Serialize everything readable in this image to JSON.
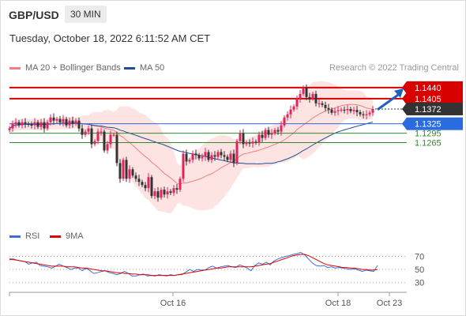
{
  "header": {
    "pair": "GBP/USD",
    "timeframe": "30 MIN",
    "datetime": "Tuesday, October 18, 2022 6:11:52 AM CET"
  },
  "legend": {
    "ma20": {
      "label": "MA 20 + Bollinger Bands",
      "color": "#f08080"
    },
    "ma50": {
      "label": "MA 50",
      "color": "#1f4e96"
    },
    "rsi": {
      "label": "RSI",
      "color": "#3b6fd8"
    },
    "ma9": {
      "label": "9MA",
      "color": "#e00000"
    }
  },
  "credit": "Research © 2022 Trading Central",
  "chart_data": [
    {
      "type": "candlestick",
      "title": "GBP/USD",
      "x_ticks": [
        "Oct 16",
        "Oct 18",
        "Oct 23"
      ],
      "ylim": [
        1.1035,
        1.148
      ],
      "current_price": "1.1372",
      "price_label_color": "#333333",
      "levels": [
        {
          "value": 1.144,
          "label": "1.1440",
          "role": "resistance",
          "color": "#d90000"
        },
        {
          "value": 1.1405,
          "label": "1.1405",
          "role": "resistance",
          "color": "#d90000"
        },
        {
          "value": 1.1325,
          "label": "1.1325",
          "role": "pivot",
          "color": "#2a6be0"
        },
        {
          "value": 1.1295,
          "label": "1.1295",
          "role": "support",
          "color": "#2e8b2e"
        },
        {
          "value": 1.1265,
          "label": "1.1265",
          "role": "support",
          "color": "#2e8b2e"
        }
      ],
      "arrow": {
        "direction": "up",
        "from": 1.137,
        "to": 1.144
      },
      "closes": [
        1.131,
        1.1325,
        1.133,
        1.132,
        1.133,
        1.1325,
        1.1322,
        1.132,
        1.133,
        1.1315,
        1.133,
        1.131,
        1.133,
        1.1345,
        1.1335,
        1.134,
        1.133,
        1.134,
        1.132,
        1.1335,
        1.1325,
        1.1335,
        1.131,
        1.129,
        1.13,
        1.131,
        1.126,
        1.127,
        1.13,
        1.13,
        1.124,
        1.126,
        1.129,
        1.129,
        1.12,
        1.115,
        1.121,
        1.115,
        1.118,
        1.116,
        1.115,
        1.114,
        1.113,
        1.112,
        1.1155,
        1.1095,
        1.111,
        1.109,
        1.1115,
        1.11,
        1.111,
        1.1105,
        1.112,
        1.1115,
        1.115,
        1.123,
        1.1205,
        1.121,
        1.123,
        1.1225,
        1.1215,
        1.122,
        1.1235,
        1.121,
        1.1225,
        1.122,
        1.1235,
        1.1225,
        1.122,
        1.121,
        1.123,
        1.12,
        1.127,
        1.1295,
        1.126,
        1.1265,
        1.1262,
        1.1268,
        1.1265,
        1.129,
        1.128,
        1.1305,
        1.129,
        1.1295,
        1.1305,
        1.13,
        1.132,
        1.1345,
        1.1355,
        1.137,
        1.138,
        1.1405,
        1.142,
        1.144,
        1.141,
        1.1405,
        1.142,
        1.139,
        1.139,
        1.1385,
        1.1375,
        1.137,
        1.136,
        1.1365,
        1.1368,
        1.137,
        1.1368,
        1.1372,
        1.1365,
        1.1369,
        1.1362,
        1.1355,
        1.1352,
        1.1355,
        1.136,
        1.1372
      ]
    },
    {
      "type": "line",
      "title": "RSI",
      "yticks": [
        70,
        50,
        30
      ],
      "ylim": [
        20,
        85
      ],
      "series": [
        {
          "name": "RSI",
          "color": "#3b6fd8",
          "values": [
            66,
            66,
            64,
            63,
            62,
            58,
            60,
            61,
            56,
            55,
            54,
            52,
            55,
            58,
            55,
            53,
            50,
            52,
            52,
            48,
            52,
            48,
            44,
            45,
            47,
            48,
            45,
            44,
            42,
            44,
            47,
            44,
            40,
            40,
            42,
            43,
            40,
            41,
            40,
            42,
            41,
            40,
            42,
            41,
            42,
            42,
            46,
            50,
            47,
            50,
            49,
            49,
            53,
            55,
            52,
            54,
            55,
            56,
            54,
            53,
            57,
            55,
            52,
            48,
            56,
            60,
            58,
            61,
            57,
            63,
            66,
            68,
            70,
            71,
            73,
            74,
            76,
            72,
            66,
            60,
            56,
            55,
            56,
            53,
            54,
            52,
            53,
            52,
            51,
            50,
            51,
            49,
            47,
            49,
            48,
            47,
            56
          ]
        },
        {
          "name": "9MA",
          "color": "#e00000",
          "values": [
            65,
            65,
            64,
            63,
            62,
            61,
            60,
            59,
            58,
            57,
            56,
            55,
            55,
            55,
            55,
            54,
            54,
            54,
            53,
            52,
            52,
            51,
            50,
            49,
            48,
            48,
            47,
            46,
            45,
            45,
            44,
            44,
            43,
            43,
            42,
            42,
            42,
            41,
            41,
            41,
            41,
            41,
            41,
            41,
            42,
            43,
            44,
            45,
            46,
            47,
            48,
            49,
            50,
            51,
            52,
            52,
            53,
            54,
            54,
            54,
            54,
            54,
            54,
            54,
            55,
            56,
            57,
            58,
            59,
            61,
            63,
            65,
            67,
            69,
            71,
            72,
            73,
            73,
            71,
            68,
            65,
            62,
            59,
            57,
            56,
            55,
            54,
            53,
            53,
            52,
            52,
            51,
            50,
            50,
            49,
            49,
            50
          ]
        }
      ]
    }
  ]
}
